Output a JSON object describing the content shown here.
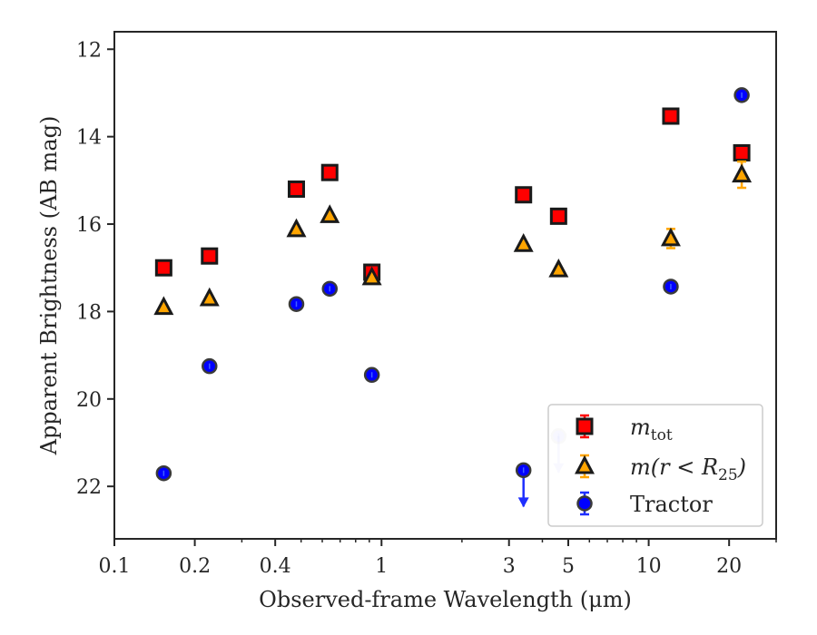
{
  "chart_data": {
    "type": "scatter",
    "xscale": "log",
    "yaxis_inverted": true,
    "xlim": [
      0.1,
      30
    ],
    "ylim": [
      23.2,
      11.6
    ],
    "xlabel": "Observed-frame Wavelength (μm)",
    "ylabel": "Apparent Brightness (AB mag)",
    "xticks": [
      {
        "value": 0.1,
        "label": "0.1"
      },
      {
        "value": 0.2,
        "label": "0.2"
      },
      {
        "value": 0.4,
        "label": "0.4"
      },
      {
        "value": 1,
        "label": "1"
      },
      {
        "value": 3,
        "label": "3"
      },
      {
        "value": 5,
        "label": "5"
      },
      {
        "value": 10,
        "label": "10"
      },
      {
        "value": 20,
        "label": "20"
      }
    ],
    "yticks": [
      {
        "value": 12,
        "label": "12"
      },
      {
        "value": 14,
        "label": "14"
      },
      {
        "value": 16,
        "label": "16"
      },
      {
        "value": 18,
        "label": "18"
      },
      {
        "value": 20,
        "label": "20"
      },
      {
        "value": 22,
        "label": "22"
      }
    ],
    "legend_position": "lower-right",
    "series": [
      {
        "name": "m_tot",
        "legend_main": "m",
        "legend_sub": "tot",
        "marker": "square",
        "fill": "#ff0000",
        "errorbar_color": "#ff0000",
        "points": [
          {
            "x": 0.153,
            "y": 17.0
          },
          {
            "x": 0.227,
            "y": 16.73
          },
          {
            "x": 0.48,
            "y": 15.2
          },
          {
            "x": 0.64,
            "y": 14.82
          },
          {
            "x": 0.92,
            "y": 17.1
          },
          {
            "x": 3.4,
            "y": 15.33
          },
          {
            "x": 4.6,
            "y": 15.82
          },
          {
            "x": 12.1,
            "y": 13.53
          },
          {
            "x": 22.3,
            "y": 14.37
          }
        ]
      },
      {
        "name": "m(r < R25)",
        "legend_main": "m(r < R",
        "legend_sub": "25",
        "legend_close": ")",
        "marker": "triangle",
        "fill": "#ffa500",
        "errorbar_color": "#ffa500",
        "points": [
          {
            "x": 0.153,
            "y": 17.9
          },
          {
            "x": 0.227,
            "y": 17.7
          },
          {
            "x": 0.48,
            "y": 16.12
          },
          {
            "x": 0.64,
            "y": 15.8
          },
          {
            "x": 0.92,
            "y": 17.22
          },
          {
            "x": 3.4,
            "y": 16.46
          },
          {
            "x": 4.6,
            "y": 17.04
          },
          {
            "x": 12.1,
            "y": 16.33,
            "err": 0.22
          },
          {
            "x": 22.3,
            "y": 14.87,
            "err": 0.3
          }
        ]
      },
      {
        "name": "Tractor",
        "legend_main": "Tractor",
        "marker": "circle",
        "fill": "#0000ff",
        "errorbar_color": "#1f2fff",
        "points": [
          {
            "x": 0.153,
            "y": 21.7
          },
          {
            "x": 0.227,
            "y": 19.25
          },
          {
            "x": 0.48,
            "y": 17.83
          },
          {
            "x": 0.64,
            "y": 17.48
          },
          {
            "x": 0.92,
            "y": 19.45
          },
          {
            "x": 3.4,
            "y": 21.63,
            "upper_limit": true
          },
          {
            "x": 4.6,
            "y": 20.85,
            "upper_limit": true,
            "faded": true
          },
          {
            "x": 12.1,
            "y": 17.43
          },
          {
            "x": 22.3,
            "y": 13.05
          }
        ]
      }
    ]
  }
}
